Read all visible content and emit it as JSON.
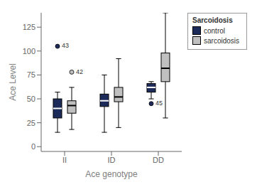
{
  "chart_data": {
    "type": "box",
    "title": "",
    "xlabel": "Ace genotype",
    "ylabel": "Ace Level",
    "legend_title": "Sarcoidosis",
    "categories": [
      "II",
      "ID",
      "DD"
    ],
    "ylim": [
      -5,
      140
    ],
    "yticks": [
      0,
      25,
      50,
      75,
      100,
      125
    ],
    "grid": false,
    "legend": "right",
    "series": [
      {
        "name": "control",
        "color": "#1c2b5a",
        "q1": [
          30,
          42,
          57
        ],
        "median": [
          40,
          48,
          62
        ],
        "q3": [
          50,
          55,
          66
        ],
        "whisker_lo": [
          15,
          15,
          50
        ],
        "whisker_hi": [
          57,
          75,
          68
        ],
        "outliers": [
          [
            {
              "value": 105,
              "label": "43"
            }
          ],
          [],
          [
            {
              "value": 45,
              "label": "45"
            }
          ]
        ]
      },
      {
        "name": "sarcoidosis",
        "color": "#c0c0c0",
        "q1": [
          35,
          47,
          68
        ],
        "median": [
          43,
          52,
          82
        ],
        "q3": [
          48,
          62,
          98
        ],
        "whisker_lo": [
          18,
          20,
          30
        ],
        "whisker_hi": [
          62,
          92,
          140
        ],
        "outliers": [
          [
            {
              "value": 78,
              "label": "42"
            }
          ],
          [],
          []
        ]
      }
    ]
  }
}
